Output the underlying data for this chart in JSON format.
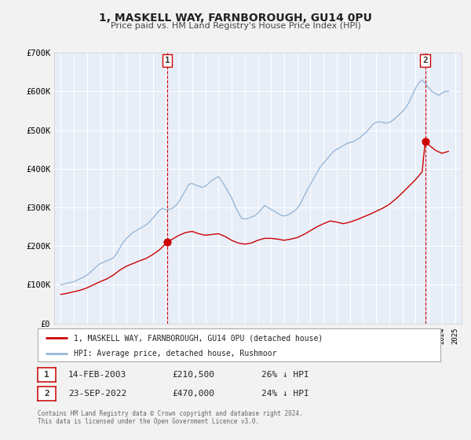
{
  "title": "1, MASKELL WAY, FARNBOROUGH, GU14 0PU",
  "subtitle": "Price paid vs. HM Land Registry's House Price Index (HPI)",
  "bg_color": "#f2f2f2",
  "plot_bg_color": "#e8eef8",
  "grid_color": "#ffffff",
  "red_color": "#cc0000",
  "blue_color": "#99b8d8",
  "ylim": [
    0,
    700000
  ],
  "yticks": [
    0,
    100000,
    200000,
    300000,
    400000,
    500000,
    600000,
    700000
  ],
  "ytick_labels": [
    "£0",
    "£100K",
    "£200K",
    "£300K",
    "£400K",
    "£500K",
    "£600K",
    "£700K"
  ],
  "xlim_start": 1994.5,
  "xlim_end": 2025.5,
  "sale1_x": 2003.12,
  "sale1_y": 210500,
  "sale2_x": 2022.73,
  "sale2_y": 470000,
  "legend_line1": "1, MASKELL WAY, FARNBOROUGH, GU14 0PU (detached house)",
  "legend_line2": "HPI: Average price, detached house, Rushmoor",
  "label1_date": "14-FEB-2003",
  "label1_price": "£210,500",
  "label1_hpi": "26% ↓ HPI",
  "label2_date": "23-SEP-2022",
  "label2_price": "£470,000",
  "label2_hpi": "24% ↓ HPI",
  "footer1": "Contains HM Land Registry data © Crown copyright and database right 2024.",
  "footer2": "This data is licensed under the Open Government Licence v3.0.",
  "hpi_data": {
    "years": [
      1995.0,
      1995.25,
      1995.5,
      1995.75,
      1996.0,
      1996.25,
      1996.5,
      1996.75,
      1997.0,
      1997.25,
      1997.5,
      1997.75,
      1998.0,
      1998.25,
      1998.5,
      1998.75,
      1999.0,
      1999.25,
      1999.5,
      1999.75,
      2000.0,
      2000.25,
      2000.5,
      2000.75,
      2001.0,
      2001.25,
      2001.5,
      2001.75,
      2002.0,
      2002.25,
      2002.5,
      2002.75,
      2003.0,
      2003.25,
      2003.5,
      2003.75,
      2004.0,
      2004.25,
      2004.5,
      2004.75,
      2005.0,
      2005.25,
      2005.5,
      2005.75,
      2006.0,
      2006.25,
      2006.5,
      2006.75,
      2007.0,
      2007.25,
      2007.5,
      2007.75,
      2008.0,
      2008.25,
      2008.5,
      2008.75,
      2009.0,
      2009.25,
      2009.5,
      2009.75,
      2010.0,
      2010.25,
      2010.5,
      2010.75,
      2011.0,
      2011.25,
      2011.5,
      2011.75,
      2012.0,
      2012.25,
      2012.5,
      2012.75,
      2013.0,
      2013.25,
      2013.5,
      2013.75,
      2014.0,
      2014.25,
      2014.5,
      2014.75,
      2015.0,
      2015.25,
      2015.5,
      2015.75,
      2016.0,
      2016.25,
      2016.5,
      2016.75,
      2017.0,
      2017.25,
      2017.5,
      2017.75,
      2018.0,
      2018.25,
      2018.5,
      2018.75,
      2019.0,
      2019.25,
      2019.5,
      2019.75,
      2020.0,
      2020.25,
      2020.5,
      2020.75,
      2021.0,
      2021.25,
      2021.5,
      2021.75,
      2022.0,
      2022.25,
      2022.5,
      2022.75,
      2023.0,
      2023.25,
      2023.5,
      2023.75,
      2024.0,
      2024.25,
      2024.5
    ],
    "values": [
      100000,
      102000,
      104000,
      106000,
      108000,
      112000,
      116000,
      120000,
      125000,
      132000,
      140000,
      148000,
      155000,
      158000,
      162000,
      165000,
      170000,
      180000,
      195000,
      210000,
      220000,
      228000,
      235000,
      240000,
      245000,
      250000,
      255000,
      262000,
      272000,
      282000,
      292000,
      298000,
      294000,
      295000,
      298000,
      305000,
      315000,
      330000,
      345000,
      360000,
      362000,
      358000,
      355000,
      352000,
      355000,
      362000,
      370000,
      375000,
      380000,
      368000,
      355000,
      340000,
      325000,
      305000,
      288000,
      272000,
      270000,
      272000,
      275000,
      278000,
      285000,
      295000,
      305000,
      300000,
      295000,
      290000,
      285000,
      280000,
      278000,
      280000,
      285000,
      290000,
      298000,
      310000,
      328000,
      345000,
      360000,
      375000,
      390000,
      405000,
      415000,
      425000,
      435000,
      445000,
      450000,
      455000,
      460000,
      465000,
      468000,
      470000,
      475000,
      480000,
      488000,
      495000,
      505000,
      515000,
      520000,
      522000,
      520000,
      518000,
      520000,
      525000,
      532000,
      540000,
      548000,
      558000,
      572000,
      590000,
      608000,
      622000,
      630000,
      620000,
      610000,
      600000,
      595000,
      590000,
      595000,
      600000,
      600000
    ]
  },
  "price_data": {
    "years": [
      1995.0,
      1995.5,
      1996.0,
      1996.5,
      1997.0,
      1997.5,
      1998.0,
      1998.5,
      1999.0,
      1999.5,
      2000.0,
      2000.5,
      2001.0,
      2001.5,
      2002.0,
      2002.5,
      2003.12,
      2003.5,
      2004.0,
      2004.5,
      2005.0,
      2005.5,
      2006.0,
      2006.5,
      2007.0,
      2007.5,
      2008.0,
      2008.5,
      2009.0,
      2009.5,
      2010.0,
      2010.5,
      2011.0,
      2011.5,
      2012.0,
      2012.5,
      2013.0,
      2013.5,
      2014.0,
      2014.5,
      2015.0,
      2015.5,
      2016.0,
      2016.5,
      2017.0,
      2017.5,
      2018.0,
      2018.5,
      2019.0,
      2019.5,
      2020.0,
      2020.5,
      2021.0,
      2021.5,
      2022.0,
      2022.5,
      2022.73,
      2023.0,
      2023.5,
      2024.0,
      2024.5
    ],
    "values": [
      75000,
      78000,
      82000,
      86000,
      92000,
      100000,
      108000,
      115000,
      125000,
      138000,
      148000,
      155000,
      162000,
      168000,
      178000,
      190000,
      210500,
      218000,
      228000,
      235000,
      238000,
      232000,
      228000,
      230000,
      232000,
      225000,
      215000,
      208000,
      205000,
      208000,
      215000,
      220000,
      220000,
      218000,
      215000,
      218000,
      222000,
      230000,
      240000,
      250000,
      258000,
      265000,
      262000,
      258000,
      262000,
      268000,
      275000,
      282000,
      290000,
      298000,
      308000,
      322000,
      338000,
      355000,
      372000,
      392000,
      470000,
      462000,
      448000,
      440000,
      445000
    ]
  }
}
